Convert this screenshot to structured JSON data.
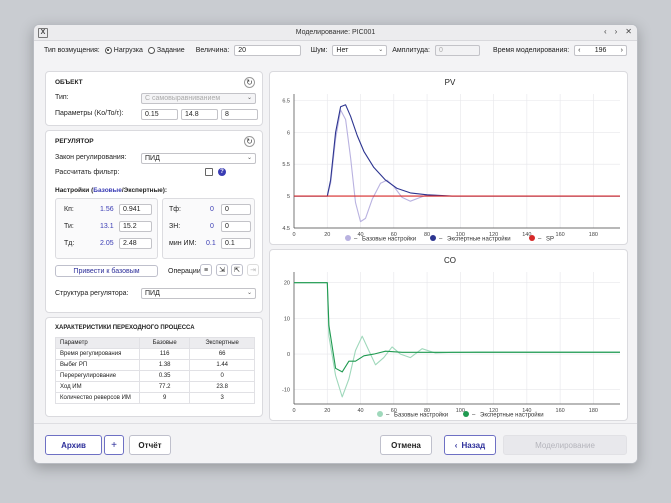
{
  "window": {
    "title": "Моделирование: PIC001"
  },
  "top": {
    "disturbance_label": "Тип возмущения:",
    "opt_load": "Нагрузка",
    "opt_setpoint": "Задание",
    "magnitude_label": "Величина:",
    "magnitude_value": "20",
    "noise_label": "Шум:",
    "noise_value": "Нет",
    "amplitude_label": "Амплитуда:",
    "amplitude_value": "0",
    "simtime_label": "Время моделирования:",
    "simtime_value": "196"
  },
  "object": {
    "title": "ОБЪЕКТ",
    "type_label": "Тип:",
    "type_value": "С самовыравниванием",
    "params_label": "Параметры (Ko/To/τ):",
    "p1": "0.15",
    "p2": "14.8",
    "p3": "8"
  },
  "regulator": {
    "title": "РЕГУЛЯТОР",
    "law_label": "Закон регулирования:",
    "law_value": "ПИД",
    "filter_label": "Рассчитать фильтр:",
    "settings_a": "Настройки (",
    "settings_b": "Базовые",
    "settings_c": "/Экспертные):",
    "kp_label": "Кп:",
    "kp_base": "1.56",
    "kp_val": "0.941",
    "ti_label": "Ти:",
    "ti_base": "13.1",
    "ti_val": "15.2",
    "td_label": "Тд:",
    "td_base": "2.05",
    "td_val": "2.48",
    "tf_label": "Тф:",
    "tf_base": "0",
    "tf_val": "0",
    "zn_label": "ЗН:",
    "zn_base": "0",
    "zn_val": "0",
    "min_label": "мин ИМ:",
    "min_base": "0.1",
    "min_val": "0.1",
    "reset_btn": "Привести к базовым",
    "ops_label": "Операции:",
    "struct_label": "Структура регулятора:",
    "struct_value": "ПИД"
  },
  "characteristics": {
    "title": "ХАРАКТЕРИСТИКИ ПЕРЕХОДНОГО ПРОЦЕССА",
    "headers": [
      "Параметр",
      "Базовые",
      "Экспертные"
    ],
    "rows": [
      [
        "Время регулирования",
        "116",
        "66"
      ],
      [
        "Выбег РП",
        "1.38",
        "1.44"
      ],
      [
        "Перерегулирование",
        "0.35",
        "0"
      ],
      [
        "Ход ИМ",
        "77.2",
        "23.8"
      ],
      [
        "Количество реверсов ИМ",
        "9",
        "3"
      ]
    ]
  },
  "charts_legend": {
    "base": "Базовые настройки",
    "expert": "Экспертные настройки",
    "sp": "SP"
  },
  "chart_data": [
    {
      "type": "line",
      "title": "PV",
      "xlim": [
        0,
        196
      ],
      "ylim": [
        4.5,
        6.6
      ],
      "xticks": [
        0,
        20,
        40,
        60,
        80,
        100,
        120,
        140,
        160,
        180
      ],
      "yticks": [
        4.5,
        5,
        5.5,
        6,
        6.5
      ],
      "colors": {
        "base": "#b9b2e0",
        "expert": "#2d3590",
        "sp": "#d62828"
      },
      "series": [
        {
          "name": "Базовые настройки",
          "x": [
            0,
            20,
            22,
            25,
            28,
            31,
            34,
            37,
            40,
            43,
            47,
            52,
            56,
            60,
            65,
            70,
            75,
            80,
            90,
            100,
            196
          ],
          "y": [
            5,
            5,
            5.2,
            5.9,
            6.35,
            6.2,
            5.6,
            4.9,
            4.6,
            4.65,
            4.95,
            5.2,
            5.25,
            5.15,
            4.98,
            4.92,
            4.97,
            5.02,
            5,
            5,
            5
          ]
        },
        {
          "name": "Экспертные настройки",
          "x": [
            0,
            20,
            22,
            25,
            28,
            31,
            34,
            38,
            42,
            48,
            55,
            62,
            70,
            80,
            95,
            110,
            196
          ],
          "y": [
            5,
            5,
            5.25,
            6,
            6.4,
            6.43,
            6.25,
            5.95,
            5.7,
            5.45,
            5.25,
            5.12,
            5.05,
            5.02,
            5,
            5,
            5
          ]
        },
        {
          "name": "SP",
          "x": [
            0,
            20,
            196
          ],
          "y": [
            5,
            5,
            5
          ]
        }
      ]
    },
    {
      "type": "line",
      "title": "CO",
      "xlim": [
        0,
        196
      ],
      "ylim": [
        -14,
        23
      ],
      "xticks": [
        0,
        20,
        40,
        60,
        80,
        100,
        120,
        140,
        160,
        180
      ],
      "yticks": [
        -10,
        0,
        10,
        20
      ],
      "colors": {
        "base": "#9fd8bb",
        "expert": "#1f9a50"
      },
      "series": [
        {
          "name": "Базовые настройки",
          "x": [
            0,
            20,
            21,
            25,
            29,
            33,
            37,
            41,
            45,
            49,
            54,
            59,
            64,
            70,
            77,
            85,
            95,
            110,
            196
          ],
          "y": [
            20,
            20,
            5,
            -6,
            -12,
            -7,
            1,
            5,
            1,
            -3,
            -1,
            2,
            0,
            -1,
            1.5,
            0.3,
            0.5,
            0.6,
            0.6
          ]
        },
        {
          "name": "Экспертные настройки",
          "x": [
            0,
            20,
            21,
            25,
            29,
            33,
            37,
            42,
            48,
            55,
            65,
            75,
            90,
            110,
            196
          ],
          "y": [
            20,
            20,
            8,
            -4,
            -5,
            -2,
            -2,
            -0.5,
            0,
            0.8,
            0.5,
            0.5,
            0.5,
            0.5,
            0.5
          ]
        }
      ]
    }
  ],
  "footer": {
    "archive": "Архив",
    "plus": "+",
    "report": "Отчёт",
    "cancel": "Отмена",
    "back": "Назад",
    "simulate": "Моделирование"
  }
}
